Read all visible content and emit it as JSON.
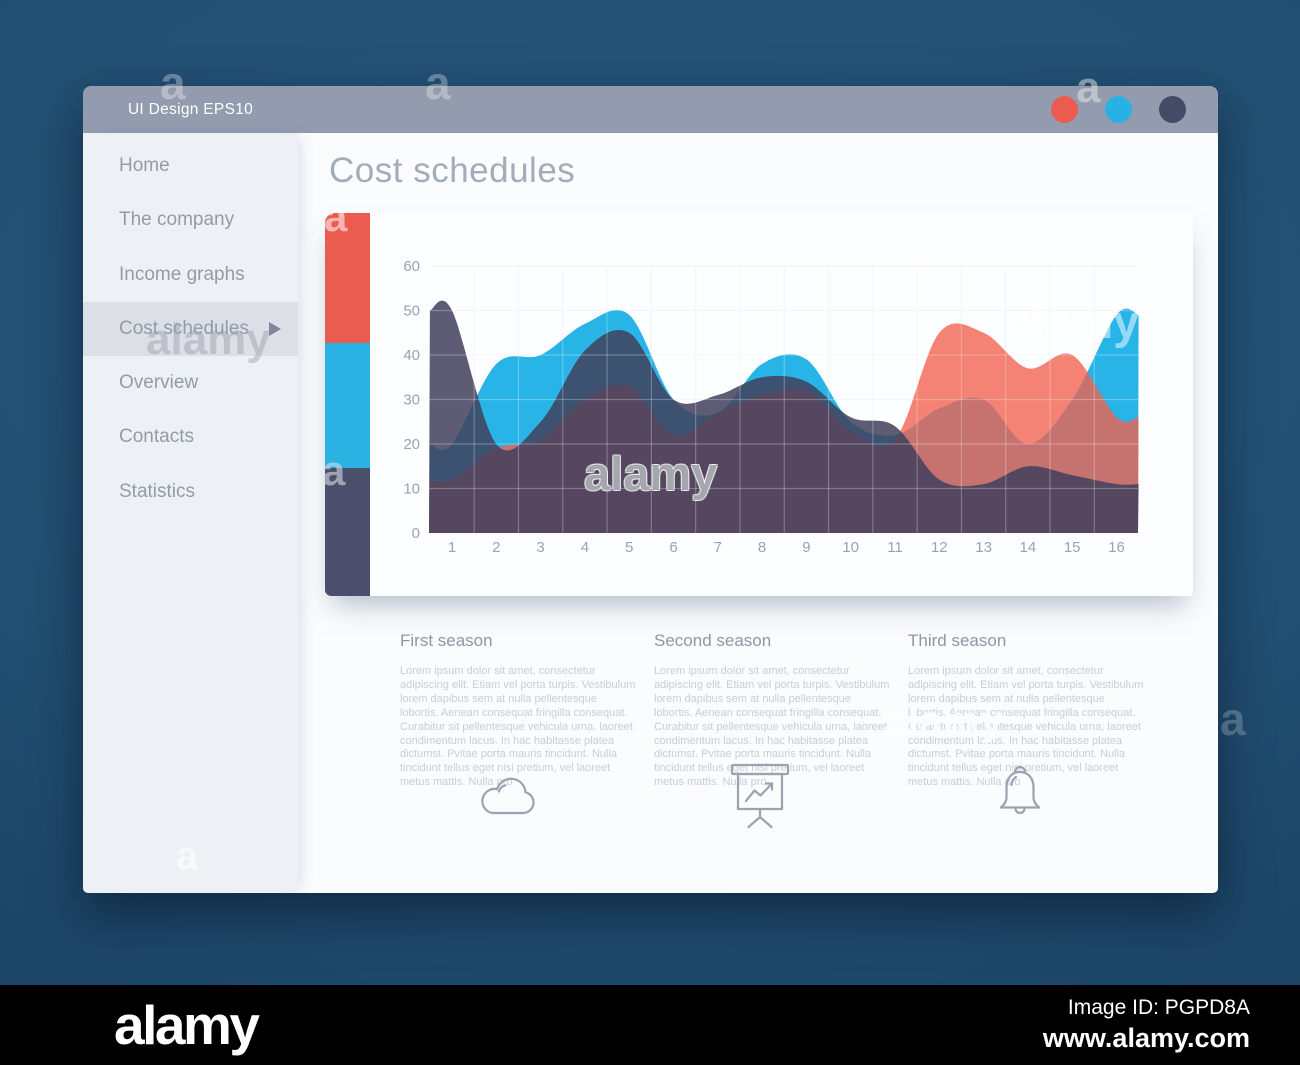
{
  "window": {
    "title": "UI Design EPS10",
    "controls": [
      {
        "name": "red-circle",
        "color": "#ea5c50"
      },
      {
        "name": "blue-circle",
        "color": "#29b1e6"
      },
      {
        "name": "navy-circle",
        "color": "#454b67"
      }
    ]
  },
  "sidebar": {
    "items": [
      {
        "label": "Home",
        "active": false
      },
      {
        "label": "The company",
        "active": false
      },
      {
        "label": "Income graphs",
        "active": false
      },
      {
        "label": "Cost schedules",
        "active": true
      },
      {
        "label": "Overview",
        "active": false
      },
      {
        "label": "Contacts",
        "active": false
      },
      {
        "label": "Statistics",
        "active": false
      }
    ]
  },
  "main": {
    "title": "Cost schedules"
  },
  "chart_data": {
    "type": "area",
    "title": "",
    "x_categories": [
      "1",
      "2",
      "3",
      "4",
      "5",
      "6",
      "7",
      "8",
      "9",
      "10",
      "11",
      "12",
      "13",
      "14",
      "15",
      "16"
    ],
    "y_ticks": [
      0,
      10,
      20,
      30,
      40,
      50,
      60
    ],
    "ylim": [
      0,
      62
    ],
    "grid": true,
    "legend_position": "none",
    "series": [
      {
        "name": "blue",
        "color": "#29b4e8",
        "opacity": 1,
        "values": [
          20,
          38,
          40,
          47,
          49,
          30,
          27,
          38,
          39,
          25,
          22,
          28,
          30,
          20,
          30,
          49
        ]
      },
      {
        "name": "red",
        "color": "#f2604e",
        "opacity": 0.78,
        "values": [
          12,
          19,
          21,
          30,
          33,
          22,
          27,
          31,
          32,
          23,
          21,
          45,
          45,
          37,
          40,
          26
        ]
      },
      {
        "name": "navy",
        "color": "#413f5c",
        "opacity": 0.85,
        "values": [
          50,
          20,
          25,
          41,
          45,
          30,
          31,
          35,
          34,
          26,
          24,
          12,
          11,
          15,
          13,
          11
        ]
      }
    ],
    "side_bar_segments": [
      {
        "color": "#ea5c50"
      },
      {
        "color": "#29b2e2"
      },
      {
        "color": "#4b4f6b"
      }
    ]
  },
  "seasons": {
    "items": [
      {
        "title": "First season"
      },
      {
        "title": "Second season"
      },
      {
        "title": "Third season"
      }
    ],
    "body": "Lorem ipsum dolor sit amet, consectetur adipiscing elit. Etiam vel porta turpis. Vestibulum lorem dapibus sem at nulla pellentesque lobortis. Aenean consequat fringilla consequat. Curabitur sit pellentesque vehicula urna, laoreet condimentum lacus. In hac habitasse platea dictumst. Pvitae porta mauris tincidunt. Nulla tincidunt tellus eget nisi pretium, vel laoreet metus mattis. Nulla pro"
  },
  "icons": [
    "cloud-icon",
    "presentation-chart-icon",
    "bell-icon"
  ],
  "watermark": {
    "glyph": "a",
    "word": "alamy"
  },
  "footer": {
    "logo": "alamy",
    "image_id": "Image ID: PGPD8A",
    "url": "www.alamy.com"
  }
}
